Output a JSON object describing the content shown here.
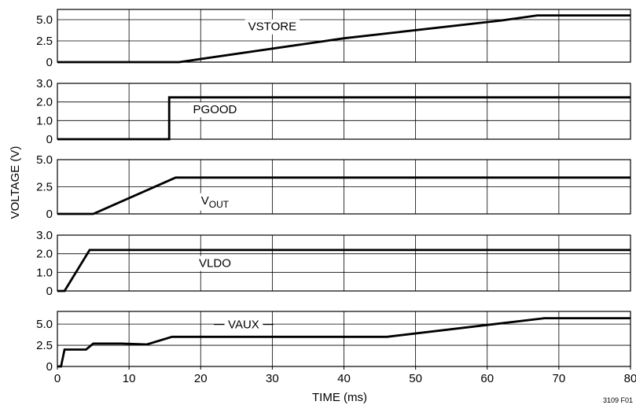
{
  "chart_data": {
    "type": "line",
    "xlabel": "TIME (ms)",
    "ylabel": "VOLTAGE (V)",
    "figure_id": "3109 F01",
    "xlim": [
      0,
      80
    ],
    "xticks": [
      0,
      10,
      20,
      30,
      40,
      50,
      60,
      70,
      80
    ],
    "xtick_labels": [
      "0",
      "10",
      "20",
      "30",
      "40",
      "50",
      "60",
      "70",
      "80"
    ],
    "grid": true,
    "panels": [
      {
        "name": "VSTORE",
        "label": "VSTORE",
        "ylim": [
          0,
          6.2
        ],
        "yticks": [
          0,
          2.5,
          5.0
        ],
        "ytick_labels": [
          "0",
          "2.5",
          "5.0"
        ],
        "x": [
          0,
          17,
          40,
          62,
          67,
          80
        ],
        "y": [
          0,
          0,
          2.8,
          4.9,
          5.5,
          5.5
        ]
      },
      {
        "name": "PGOOD",
        "label": "PGOOD",
        "ylim": [
          0,
          3.0
        ],
        "yticks": [
          0,
          1.0,
          2.0,
          3.0
        ],
        "ytick_labels": [
          "0",
          "1.0",
          "2.0",
          "3.0"
        ],
        "x": [
          0,
          15.6,
          15.6,
          80
        ],
        "y": [
          0,
          0,
          2.25,
          2.25
        ]
      },
      {
        "name": "VOUT",
        "label_main": "V",
        "label_sub": "OUT",
        "ylim": [
          0,
          5.0
        ],
        "yticks": [
          0,
          2.5,
          5.0
        ],
        "ytick_labels": [
          "0",
          "2.5",
          "5.0"
        ],
        "x": [
          0,
          5,
          16.5,
          80
        ],
        "y": [
          0,
          0,
          3.35,
          3.35
        ]
      },
      {
        "name": "VLDO",
        "label": "VLDO",
        "ylim": [
          0,
          3.0
        ],
        "yticks": [
          0,
          1.0,
          2.0,
          3.0
        ],
        "ytick_labels": [
          "0",
          "1.0",
          "2.0",
          "3.0"
        ],
        "x": [
          0,
          1,
          4.5,
          80
        ],
        "y": [
          0,
          0,
          2.2,
          2.2
        ]
      },
      {
        "name": "VAUX",
        "label": "VAUX",
        "ylim": [
          0,
          6.5
        ],
        "yticks": [
          0,
          2.5,
          5.0
        ],
        "ytick_labels": [
          "0",
          "2.5",
          "5.0"
        ],
        "x": [
          0,
          0.5,
          1,
          4,
          5,
          9,
          12.5,
          16,
          46,
          68,
          80
        ],
        "y": [
          0,
          0,
          2.0,
          2.0,
          2.7,
          2.7,
          2.6,
          3.5,
          3.5,
          5.7,
          5.7
        ]
      }
    ]
  }
}
